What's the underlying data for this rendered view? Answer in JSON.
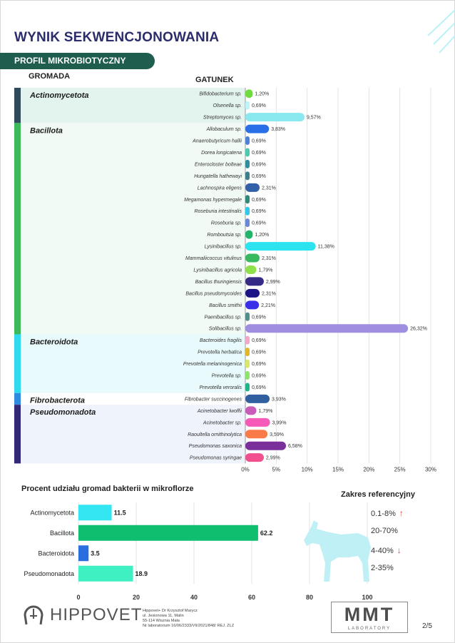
{
  "header": {
    "title": "WYNIK SEKWENCJONOWANIA",
    "section": "PROFIL MIKROBIOTYCZNY",
    "col_phylum": "GROMADA",
    "col_species": "GATUNEK"
  },
  "colors": {
    "title": "#2b2d6b",
    "section_bg": "#1f5d4e",
    "groups": {
      "Actinomycetota": "#2f4a5a",
      "Bacillota": "#3cb95a",
      "Bacteroidota": "#2fd9ee",
      "Fibrobacterota": "#2f8be0",
      "Pseudomonadota": "#332878"
    }
  },
  "chart_data": [
    {
      "type": "bar",
      "orientation": "horizontal",
      "x_unit": "%",
      "xlim": [
        0,
        30
      ],
      "x_ticks": [
        "0%",
        "5%",
        "10%",
        "15%",
        "20%",
        "25%",
        "30%"
      ],
      "grid": true,
      "groups": [
        {
          "name": "Actinomycetota",
          "species": [
            {
              "name": "Bifidobacterium sp.",
              "value": 1.2,
              "label": "1,20%",
              "color": "#6edc3c"
            },
            {
              "name": "Olsenella sp.",
              "value": 0.69,
              "label": "0,69%",
              "color": "#bff3fb"
            },
            {
              "name": "Streptomyces sp.",
              "value": 9.57,
              "label": "9,57%",
              "color": "#8ae9ef"
            }
          ]
        },
        {
          "name": "Bacillota",
          "species": [
            {
              "name": "Allobaculum sp.",
              "value": 3.83,
              "label": "3,83%",
              "color": "#2a6fe8"
            },
            {
              "name": "Anaerobutyricum hallii",
              "value": 0.69,
              "label": "0,69%",
              "color": "#4f7fd8"
            },
            {
              "name": "Dorea longicatena",
              "value": 0.69,
              "label": "0,69%",
              "color": "#4fc9ad"
            },
            {
              "name": "Enterocloster bolteae",
              "value": 0.69,
              "label": "0,69%",
              "color": "#2f8e9b"
            },
            {
              "name": "Hungatella hathewayi",
              "value": 0.69,
              "label": "0,69%",
              "color": "#3a7f8a"
            },
            {
              "name": "Lachnospira eligens",
              "value": 2.31,
              "label": "2,31%",
              "color": "#315fa8"
            },
            {
              "name": "Megamonas hypermegale",
              "value": 0.69,
              "label": "0,69%",
              "color": "#2f8a7a"
            },
            {
              "name": "Roseburia intestinalis",
              "value": 0.69,
              "label": "0,69%",
              "color": "#2fc9ea"
            },
            {
              "name": "Roseburia sp.",
              "value": 0.69,
              "label": "0,69%",
              "color": "#6a86d8"
            },
            {
              "name": "Romboutsia sp.",
              "value": 1.2,
              "label": "1,20%",
              "color": "#1fb56a"
            },
            {
              "name": "Lysinibacillus sp.",
              "value": 11.38,
              "label": "11,38%",
              "color": "#2de3f0"
            },
            {
              "name": "Mammaliicoccus vitulinus",
              "value": 2.31,
              "label": "2,31%",
              "color": "#38b85f"
            },
            {
              "name": "Lysinibacillus agricola",
              "value": 1.79,
              "label": "1,79%",
              "color": "#8fe04a"
            },
            {
              "name": "Bacillus thuringiensis",
              "value": 2.99,
              "label": "2,99%",
              "color": "#352a86"
            },
            {
              "name": "Bacillus pseudomycoides",
              "value": 2.31,
              "label": "2,31%",
              "color": "#1a1486"
            },
            {
              "name": "Bacillus smithii",
              "value": 2.21,
              "label": "2,21%",
              "color": "#3a2fe8"
            },
            {
              "name": "Paenibacillus sp.",
              "value": 0.69,
              "label": "0,69%",
              "color": "#4f8f86"
            },
            {
              "name": "Solibacillus sp.",
              "value": 26.32,
              "label": "26,32%",
              "color": "#a08fe0"
            }
          ]
        },
        {
          "name": "Bacteroidota",
          "species": [
            {
              "name": "Bacteroides fragilis",
              "value": 0.69,
              "label": "0,69%",
              "color": "#f2a8c8"
            },
            {
              "name": "Prevotella herbatica",
              "value": 0.69,
              "label": "0,69%",
              "color": "#e2b52a"
            },
            {
              "name": "Prevotella melaninogenica",
              "value": 0.69,
              "label": "0,69%",
              "color": "#d9e86a"
            },
            {
              "name": "Prevotella sp.",
              "value": 0.69,
              "label": "0,69%",
              "color": "#8ee36a"
            },
            {
              "name": "Prevotella veroralis",
              "value": 0.69,
              "label": "0,69%",
              "color": "#1fb58a"
            }
          ]
        },
        {
          "name": "Fibrobacterota",
          "species": [
            {
              "name": "Fibrobacter succinogenes",
              "value": 3.93,
              "label": "3,93%",
              "color": "#315fa0"
            }
          ]
        },
        {
          "name": "Pseudomonadota",
          "species": [
            {
              "name": "Acinetobacter lwoffii",
              "value": 1.79,
              "label": "1,79%",
              "color": "#c85ab8"
            },
            {
              "name": "Acinetobacter sp.",
              "value": 3.99,
              "label": "3,99%",
              "color": "#f55ab8"
            },
            {
              "name": "Raoultella ornithinolytica",
              "value": 3.59,
              "label": "3,59%",
              "color": "#fb7a4a"
            },
            {
              "name": "Pseudomonas saxonica",
              "value": 6.58,
              "label": "6,58%",
              "color": "#7a2f9a"
            },
            {
              "name": "Pseudomonas syringae",
              "value": 2.99,
              "label": "2,99%",
              "color": "#f24f8e"
            }
          ]
        }
      ]
    },
    {
      "type": "bar",
      "orientation": "horizontal",
      "title": "Procent udziału gromad bakterii w mikroflorze",
      "categories": [
        "Actinomycetota",
        "Bacillota",
        "Bacteroidota",
        "Pseudomonadota"
      ],
      "values": [
        11.5,
        62.2,
        3.5,
        18.9
      ],
      "labels": [
        "11.5",
        "62.2",
        "3.5",
        "18.9"
      ],
      "colors": [
        "#33e6f2",
        "#0fbf6f",
        "#2a6fe0",
        "#3ef0c2"
      ],
      "xlim": [
        0,
        100
      ],
      "x_ticks": [
        "0",
        "20",
        "40",
        "60",
        "80",
        "100"
      ],
      "grid": true
    }
  ],
  "reference": {
    "title": "Zakres referencyjny",
    "items": [
      {
        "range": "0.1-8%",
        "arrow": "↑"
      },
      {
        "range": "20-70%",
        "arrow": ""
      },
      {
        "range": "4-40%",
        "arrow": "↓"
      },
      {
        "range": "2-35%",
        "arrow": ""
      }
    ]
  },
  "footer": {
    "brand": "HIPPOVET",
    "info_lines": [
      "Hippovet+ Dr Krzysztof Marycz",
      "ul. Jesionowa 11, Malin",
      "55-114 Wisznia Mała",
      "Nr laboratorium 16/06/2333/VII/2021/848/ REJ. ZLZ"
    ],
    "mmt_logo": "MMT",
    "mmt_sub": "LABORATORY",
    "page": "2/5"
  }
}
